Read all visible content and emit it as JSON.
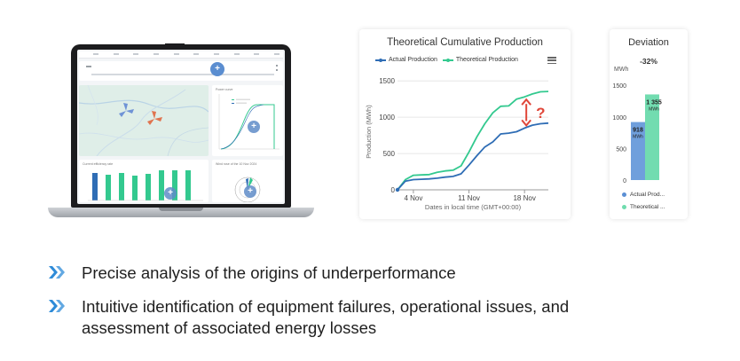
{
  "dashboard": {
    "power_curve_title": "Power curve",
    "efficiency_title": "Current efficiency rate",
    "wind_title": "Wind rose of the 10 Nov 2024"
  },
  "icons": {
    "plus": "+",
    "bullet": "double-chevron-right-icon",
    "menu": "hamburger-menu-icon"
  },
  "production_card": {
    "title": "Theoretical Cumulative Production",
    "legend": [
      "Actual Production",
      "Theoretical Production"
    ]
  },
  "deviation_card": {
    "title": "Deviation",
    "percent": "-32%",
    "unit": "MWh",
    "legend": [
      "Actual Prod...",
      "Theoretical ..."
    ]
  },
  "colors": {
    "actual": "#2f6db5",
    "theoretical": "#33c98f",
    "actual_bar": "#6f9fdc",
    "theoretical_bar": "#72dcb0",
    "arrow": "#e0473a",
    "bullet": "#2e8bd8"
  },
  "bullets": [
    "Precise analysis of the origins of underperformance",
    "Intuitive identification of equipment failures, operational issues, and assessment of associated energy losses"
  ],
  "chart_data": [
    {
      "type": "line",
      "title": "Theoretical Cumulative Production",
      "xlabel": "Dates in local time (GMT+00:00)",
      "ylabel": "Production (MWh)",
      "x_ticks": [
        "4 Nov",
        "11 Nov",
        "18 Nov"
      ],
      "y_ticks": [
        0,
        500,
        1000,
        1500
      ],
      "ylim": [
        0,
        1600
      ],
      "annotation": "?",
      "legend_position": "top",
      "x": [
        "2 Nov",
        "3 Nov",
        "4 Nov",
        "5 Nov",
        "6 Nov",
        "7 Nov",
        "8 Nov",
        "9 Nov",
        "10 Nov",
        "11 Nov",
        "12 Nov",
        "13 Nov",
        "14 Nov",
        "15 Nov",
        "16 Nov",
        "17 Nov",
        "18 Nov",
        "19 Nov",
        "20 Nov",
        "21 Nov"
      ],
      "series": [
        {
          "name": "Actual Production",
          "values": [
            0,
            120,
            140,
            145,
            150,
            160,
            175,
            185,
            220,
            340,
            470,
            590,
            660,
            770,
            780,
            800,
            850,
            890,
            910,
            918
          ]
        },
        {
          "name": "Theoretical Production",
          "values": [
            0,
            140,
            200,
            205,
            210,
            240,
            260,
            270,
            330,
            520,
            730,
            910,
            1060,
            1150,
            1155,
            1250,
            1280,
            1320,
            1350,
            1355
          ]
        }
      ]
    },
    {
      "type": "bar",
      "title": "Deviation",
      "ylabel": "MWh",
      "y_ticks": [
        0,
        500,
        1000,
        1500
      ],
      "ylim": [
        0,
        1600
      ],
      "series": [
        {
          "name": "Actual Prod...",
          "values": [
            918
          ],
          "label": "918 MWh"
        },
        {
          "name": "Theoretical ...",
          "values": [
            1355
          ],
          "label": "1 355 MWh"
        }
      ]
    }
  ]
}
